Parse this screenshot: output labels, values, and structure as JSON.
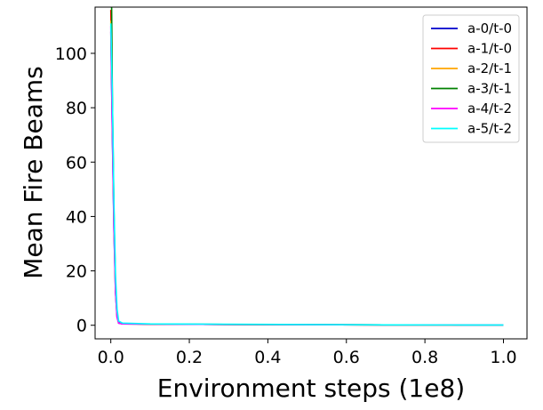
{
  "chart_data": {
    "type": "line",
    "xlabel": "Environment steps (1e8)",
    "ylabel": "Mean Fire Beams",
    "xlim": [
      -0.04,
      1.06
    ],
    "ylim": [
      -5,
      117
    ],
    "x_ticks": [
      0.0,
      0.2,
      0.4,
      0.6,
      0.8,
      1.0
    ],
    "x_tick_labels": [
      "0.0",
      "0.2",
      "0.4",
      "0.6",
      "0.8",
      "1.0"
    ],
    "y_ticks": [
      0,
      20,
      40,
      60,
      80,
      100
    ],
    "y_tick_labels": [
      "0",
      "20",
      "40",
      "60",
      "80",
      "100"
    ],
    "grid": false,
    "legend_position": "top-right",
    "series": [
      {
        "name": "a-0/t-0",
        "color": "#0000cc",
        "x": [
          0.0,
          0.004,
          0.008,
          0.012,
          0.016,
          0.02,
          0.03,
          0.1,
          0.3,
          0.5,
          0.7,
          0.9,
          1.0
        ],
        "y": [
          108,
          70,
          35,
          12,
          3,
          0.8,
          0.5,
          0.4,
          0.3,
          0.2,
          0.15,
          0.1,
          0.1
        ]
      },
      {
        "name": "a-1/t-0",
        "color": "#ff0000",
        "x": [
          0.0,
          0.004,
          0.008,
          0.012,
          0.016,
          0.02,
          0.03,
          0.1,
          0.3,
          0.5,
          0.7,
          0.9,
          1.0
        ],
        "y": [
          116,
          80,
          40,
          14,
          4,
          1.0,
          0.6,
          0.4,
          0.3,
          0.2,
          0.15,
          0.1,
          0.1
        ]
      },
      {
        "name": "a-2/t-1",
        "color": "#ffa500",
        "x": [
          0.0,
          0.004,
          0.008,
          0.012,
          0.016,
          0.02,
          0.03,
          0.1,
          0.3,
          0.5,
          0.7,
          0.9,
          1.0
        ],
        "y": [
          112,
          75,
          38,
          13,
          3.5,
          0.9,
          0.5,
          0.4,
          0.3,
          0.2,
          0.15,
          0.1,
          0.1
        ]
      },
      {
        "name": "a-3/t-1",
        "color": "#008000",
        "x": [
          0.0,
          0.002,
          0.004,
          0.008,
          0.012,
          0.016,
          0.02,
          0.03,
          0.1,
          0.3,
          0.5,
          0.7,
          0.9,
          1.0
        ],
        "y": [
          117,
          117,
          85,
          42,
          15,
          4,
          1.0,
          0.6,
          0.4,
          0.3,
          0.2,
          0.15,
          0.1,
          0.1
        ]
      },
      {
        "name": "a-4/t-2",
        "color": "#ff00ff",
        "x": [
          0.0,
          0.004,
          0.008,
          0.012,
          0.016,
          0.02,
          0.03,
          0.1,
          0.3,
          0.5,
          0.7,
          0.9,
          1.0
        ],
        "y": [
          110,
          72,
          36,
          12,
          3,
          0.8,
          0.5,
          0.4,
          0.3,
          0.2,
          0.15,
          0.1,
          0.1
        ]
      },
      {
        "name": "a-5/t-2",
        "color": "#00ffff",
        "x": [
          0.0,
          0.004,
          0.008,
          0.012,
          0.016,
          0.02,
          0.03,
          0.1,
          0.3,
          0.5,
          0.7,
          0.9,
          1.0
        ],
        "y": [
          111,
          85,
          45,
          18,
          6,
          1.5,
          0.8,
          0.5,
          0.35,
          0.25,
          0.15,
          0.1,
          0.1
        ]
      }
    ]
  }
}
